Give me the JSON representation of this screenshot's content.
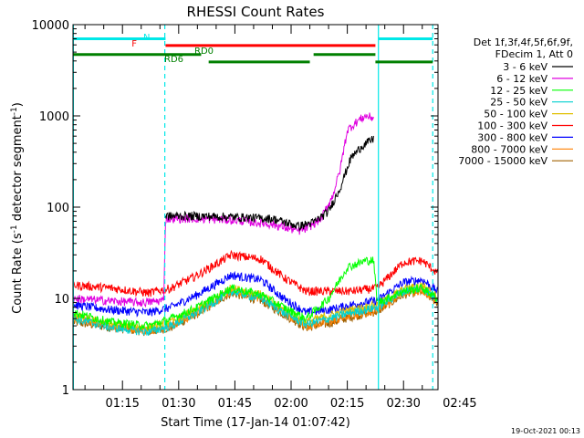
{
  "chart_data": {
    "type": "line",
    "title": "RHESSI Count Rates",
    "xlabel": "Start Time (17-Jan-14 01:07:42)",
    "ylabel_main": "Count Rate (s",
    "ylabel_sup": "-1",
    "ylabel_rest": " detector segment",
    "ylabel_sup2": "-1",
    "ylabel_end": ")",
    "yscale": "log",
    "ylim": [
      1,
      10000
    ],
    "xlim_minutes": [
      1.8,
      99.2
    ],
    "y_ticks": [
      {
        "value": 1,
        "label": "1"
      },
      {
        "value": 10,
        "label": "10"
      },
      {
        "value": 100,
        "label": "100"
      },
      {
        "value": 1000,
        "label": "1000"
      },
      {
        "value": 10000,
        "label": "10000"
      }
    ],
    "x_ticks": [
      {
        "minute": 15,
        "label": "01:15"
      },
      {
        "minute": 30,
        "label": "01:30"
      },
      {
        "minute": 45,
        "label": "01:45"
      },
      {
        "minute": 60,
        "label": "02:00"
      },
      {
        "minute": 75,
        "label": "02:15"
      },
      {
        "minute": 90,
        "label": "02:30"
      },
      {
        "minute": 105,
        "label": "02:45"
      }
    ],
    "legend_header": [
      "Det 1f,3f,4f,5f,6f,9f,",
      "FDecim 1, Att 0"
    ],
    "series": [
      {
        "name": "3 - 6 keV",
        "color": "#000000",
        "points": [
          [
            26.5,
            80
          ],
          [
            35,
            80
          ],
          [
            45,
            78
          ],
          [
            55,
            75
          ],
          [
            62,
            62
          ],
          [
            66,
            68
          ],
          [
            70,
            90
          ],
          [
            73,
            160
          ],
          [
            76,
            350
          ],
          [
            79,
            470
          ],
          [
            82,
            560
          ]
        ]
      },
      {
        "name": "6 - 12 keV",
        "color": "#e000e0",
        "points": [
          [
            2,
            10
          ],
          [
            10,
            9.5
          ],
          [
            20,
            9
          ],
          [
            26,
            9.5
          ],
          [
            26.5,
            75
          ],
          [
            35,
            75
          ],
          [
            45,
            72
          ],
          [
            55,
            65
          ],
          [
            62,
            55
          ],
          [
            64,
            58
          ],
          [
            68,
            75
          ],
          [
            71,
            130
          ],
          [
            73,
            250
          ],
          [
            75,
            700
          ],
          [
            78,
            900
          ],
          [
            80,
            1000
          ],
          [
            82,
            950
          ]
        ]
      },
      {
        "name": "12 - 25 keV",
        "color": "#00ff00",
        "points": [
          [
            2,
            7
          ],
          [
            12,
            5.5
          ],
          [
            22,
            5
          ],
          [
            28,
            6
          ],
          [
            35,
            8
          ],
          [
            44,
            13
          ],
          [
            52,
            11
          ],
          [
            58,
            8
          ],
          [
            64,
            6
          ],
          [
            70,
            10
          ],
          [
            75,
            22
          ],
          [
            80,
            26
          ],
          [
            82,
            26
          ],
          [
            83,
            9
          ],
          [
            90,
            12
          ],
          [
            95,
            13
          ],
          [
            99,
            10
          ]
        ]
      },
      {
        "name": "25 - 50 keV",
        "color": "#00d0d0",
        "points": [
          [
            2,
            6
          ],
          [
            12,
            4.8
          ],
          [
            22,
            4.3
          ],
          [
            28,
            5
          ],
          [
            35,
            7
          ],
          [
            44,
            12
          ],
          [
            52,
            10
          ],
          [
            58,
            7
          ],
          [
            64,
            5.2
          ],
          [
            70,
            6
          ],
          [
            76,
            7
          ],
          [
            83,
            8
          ],
          [
            90,
            12
          ],
          [
            95,
            13
          ],
          [
            99,
            10
          ]
        ]
      },
      {
        "name": "50 - 100 keV",
        "color": "#e0c000",
        "points": [
          [
            2,
            6.5
          ],
          [
            12,
            5.2
          ],
          [
            22,
            4.8
          ],
          [
            28,
            5.5
          ],
          [
            35,
            7.5
          ],
          [
            44,
            13
          ],
          [
            52,
            11
          ],
          [
            58,
            7.5
          ],
          [
            64,
            5.5
          ],
          [
            70,
            6.5
          ],
          [
            76,
            7.5
          ],
          [
            83,
            8.5
          ],
          [
            90,
            12.5
          ],
          [
            95,
            14
          ],
          [
            99,
            10.5
          ]
        ]
      },
      {
        "name": "100 - 300 keV",
        "color": "#ff0000",
        "points": [
          [
            2,
            14
          ],
          [
            12,
            13
          ],
          [
            22,
            11.5
          ],
          [
            28,
            13
          ],
          [
            35,
            18
          ],
          [
            44,
            30
          ],
          [
            52,
            27
          ],
          [
            58,
            17
          ],
          [
            64,
            12
          ],
          [
            70,
            12
          ],
          [
            76,
            12
          ],
          [
            83,
            13
          ],
          [
            90,
            25
          ],
          [
            95,
            26
          ],
          [
            99,
            19
          ]
        ]
      },
      {
        "name": "300 - 800 keV",
        "color": "#0000ff",
        "points": [
          [
            2,
            8.5
          ],
          [
            12,
            7.5
          ],
          [
            22,
            7
          ],
          [
            28,
            8
          ],
          [
            35,
            11
          ],
          [
            44,
            18
          ],
          [
            52,
            16
          ],
          [
            58,
            10
          ],
          [
            64,
            7
          ],
          [
            70,
            7.5
          ],
          [
            76,
            8.5
          ],
          [
            83,
            9.5
          ],
          [
            90,
            15
          ],
          [
            95,
            16
          ],
          [
            99,
            12
          ]
        ]
      },
      {
        "name": "800 - 7000 keV",
        "color": "#ff8000",
        "points": [
          [
            2,
            6
          ],
          [
            12,
            5
          ],
          [
            22,
            4.5
          ],
          [
            28,
            5
          ],
          [
            35,
            7
          ],
          [
            44,
            12
          ],
          [
            52,
            10
          ],
          [
            58,
            7
          ],
          [
            64,
            5
          ],
          [
            70,
            5.5
          ],
          [
            76,
            6.5
          ],
          [
            83,
            7.5
          ],
          [
            90,
            11.5
          ],
          [
            95,
            12.5
          ],
          [
            99,
            9.5
          ]
        ]
      },
      {
        "name": "7000 - 15000 keV",
        "color": "#a06000",
        "points": [
          [
            2,
            5.5
          ],
          [
            12,
            4.8
          ],
          [
            22,
            4.3
          ],
          [
            28,
            4.8
          ],
          [
            35,
            6.8
          ],
          [
            44,
            11.5
          ],
          [
            52,
            9.5
          ],
          [
            58,
            6.7
          ],
          [
            64,
            4.8
          ],
          [
            70,
            5.3
          ],
          [
            76,
            6.3
          ],
          [
            83,
            7.2
          ],
          [
            90,
            11
          ],
          [
            95,
            12
          ],
          [
            99,
            9
          ]
        ]
      }
    ],
    "state_bars": [
      {
        "label": "N",
        "color": "#00e8e8",
        "segments": [
          [
            1.8,
            26.5
          ],
          [
            83.3,
            97.8
          ]
        ],
        "y_value": 7000
      },
      {
        "label": "F",
        "color": "#ff0000",
        "segments": [
          [
            26.5,
            82.5
          ]
        ],
        "y_value": 5900
      },
      {
        "label": "RD0",
        "color": "#008000",
        "segments": [
          [
            1.8,
            36
          ],
          [
            66,
            82.5
          ]
        ],
        "y_value": 4700
      },
      {
        "label": "RD6",
        "color": "#008000",
        "segments": [
          [
            38,
            65
          ],
          [
            82.5,
            97.8
          ]
        ],
        "y_value": 3900
      }
    ],
    "vertical_markers": [
      {
        "minute": 1.9,
        "style": "solid",
        "color": "#00e8e8"
      },
      {
        "minute": 26.3,
        "style": "dashed",
        "color": "#00e8e8"
      },
      {
        "minute": 83.3,
        "style": "solid",
        "color": "#00e8e8"
      },
      {
        "minute": 97.8,
        "style": "dashed",
        "color": "#00e8e8"
      }
    ]
  },
  "timestamp": "19-Oct-2021 00:13"
}
